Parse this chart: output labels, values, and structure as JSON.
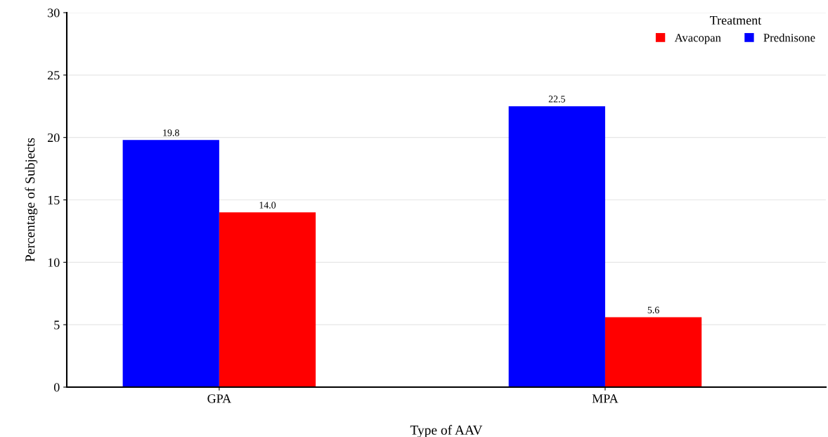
{
  "chart_data": {
    "type": "bar",
    "xlabel": "Type of AAV",
    "ylabel": "Percentage of Subjects",
    "legend_title": "Treatment",
    "categories": [
      "GPA",
      "MPA"
    ],
    "series": [
      {
        "name": "Prednisone",
        "color": "#0000ff",
        "values": [
          19.8,
          22.5
        ],
        "value_labels": [
          "19.8",
          "22.5"
        ]
      },
      {
        "name": "Avacopan",
        "color": "#ff0000",
        "values": [
          14.0,
          5.6
        ],
        "value_labels": [
          "14.0",
          "5.6"
        ]
      }
    ],
    "ylim": [
      0,
      30
    ],
    "yticks": [
      0,
      5,
      10,
      15,
      20,
      25,
      30
    ],
    "grid": "y",
    "legend": "top right"
  }
}
